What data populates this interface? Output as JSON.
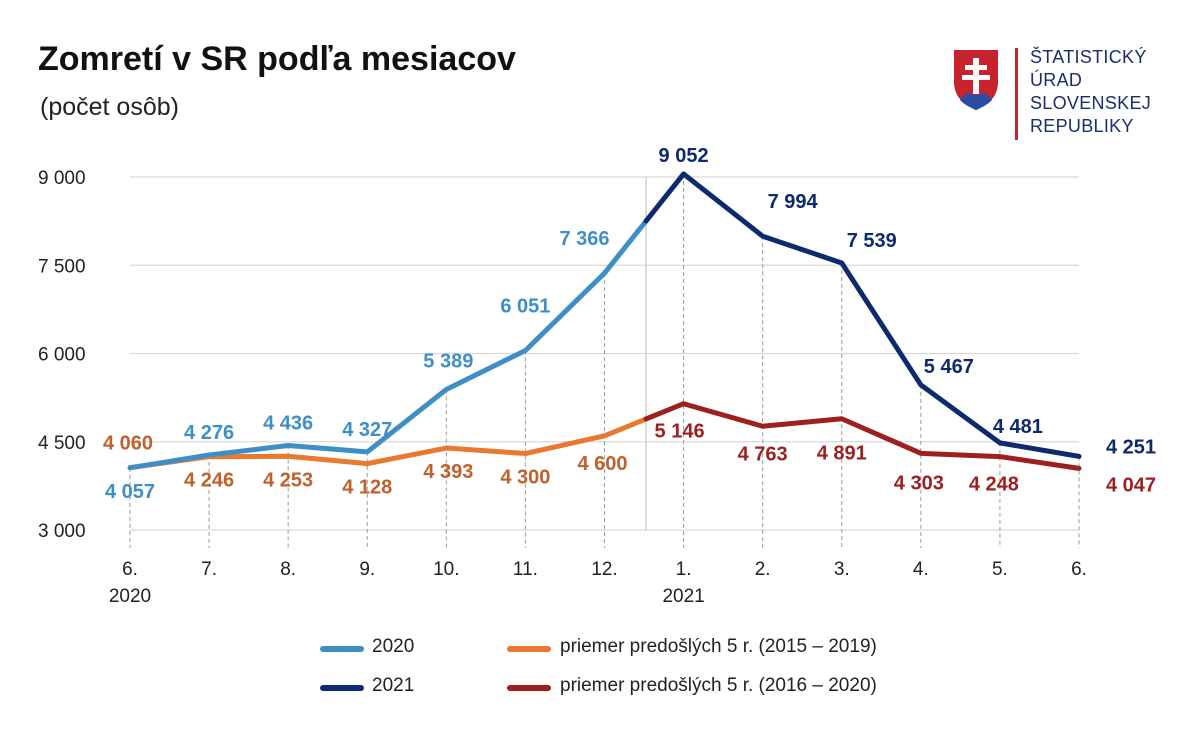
{
  "header": {
    "title": "Zomretí v SR podľa mesiacov",
    "subtitle": "(počet osôb)"
  },
  "logo": {
    "lines": [
      "ŠTATISTICKÝ",
      "ÚRAD",
      "SLOVENSKEJ",
      "REPUBLIKY"
    ]
  },
  "chart_data": {
    "type": "line",
    "x": [
      "6.",
      "7.",
      "8.",
      "9.",
      "10.",
      "11.",
      "12.",
      "1.",
      "2.",
      "3.",
      "4.",
      "5.",
      "6."
    ],
    "year_labels": [
      {
        "label": "2020",
        "at_index": 0
      },
      {
        "label": "2021",
        "at_index": 7
      }
    ],
    "ylim": [
      3000,
      9000
    ],
    "yticks": [
      3000,
      4500,
      6000,
      7500,
      9000
    ],
    "ytick_labels": [
      "3 000",
      "4 500",
      "6 000",
      "7 500",
      "9 000"
    ],
    "grid": true,
    "series": [
      {
        "name": "2020",
        "color": "#3d8fc6",
        "values": [
          4057,
          4276,
          4436,
          4327,
          5389,
          6051,
          7366,
          null,
          null,
          null,
          null,
          null,
          null
        ],
        "labels": [
          "4 057",
          "4 276",
          "4 436",
          "4 327",
          "5 389",
          "6 051",
          "7 366",
          null,
          null,
          null,
          null,
          null,
          null
        ]
      },
      {
        "name": "2021",
        "color": "#0e2a6e",
        "values": [
          null,
          null,
          null,
          null,
          null,
          null,
          null,
          9052,
          7994,
          7539,
          5467,
          4481,
          4251
        ],
        "labels": [
          null,
          null,
          null,
          null,
          null,
          null,
          null,
          "9 052",
          "7 994",
          "7 539",
          "5 467",
          "4 481",
          "4 251"
        ]
      },
      {
        "name": "priemer predošlých 5 r. (2015 – 2019)",
        "color": "#e8792f",
        "values": [
          4060,
          4246,
          4253,
          4128,
          4393,
          4300,
          4600,
          null,
          null,
          null,
          null,
          null,
          null
        ],
        "labels": [
          "4 060",
          "4 246",
          "4 253",
          "4 128",
          "4 393",
          "4 300",
          "4 600",
          null,
          null,
          null,
          null,
          null,
          null
        ]
      },
      {
        "name": "priemer predošlých 5 r. (2016 – 2020)",
        "color": "#9e1f1f",
        "values": [
          null,
          null,
          null,
          null,
          null,
          null,
          null,
          5146,
          4763,
          4891,
          4303,
          4248,
          4047
        ],
        "labels": [
          null,
          null,
          null,
          null,
          null,
          null,
          null,
          "5 146",
          "4 763",
          "4 891",
          "4 303",
          "4 248",
          "4 047"
        ]
      }
    ],
    "label_colors": {
      "2020": "#3d8fc6",
      "2021": "#0e2a6e",
      "avg2019": "#c0602a",
      "avg2020": "#9e1f1f"
    }
  },
  "legend": {
    "items": [
      {
        "label": "2020",
        "color": "#3d8fc6"
      },
      {
        "label": "priemer predošlých 5 r. (2015 – 2019)",
        "color": "#e8792f"
      },
      {
        "label": "2021",
        "color": "#0e2a6e"
      },
      {
        "label": "priemer predošlých 5 r. (2016 – 2020)",
        "color": "#9e1f1f"
      }
    ]
  }
}
